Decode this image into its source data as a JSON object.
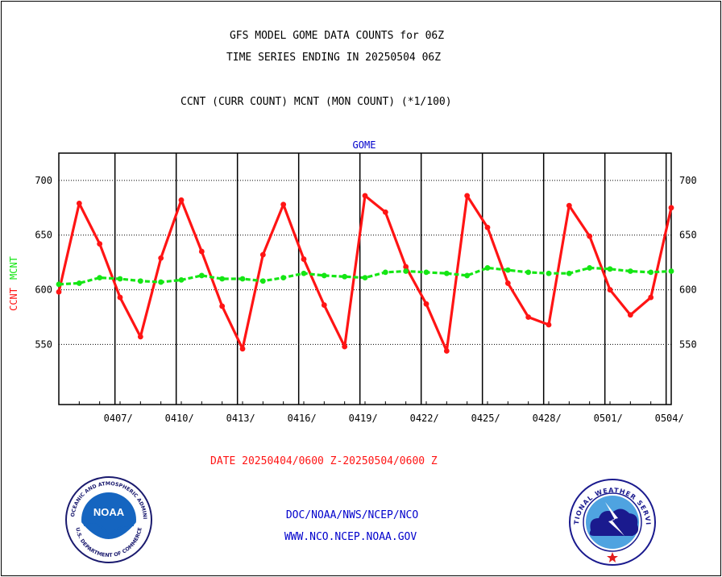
{
  "header": {
    "title_line1": "GFS MODEL GOME DATA COUNTS for 06Z",
    "title_line2": "TIME SERIES ENDING IN 20250504 06Z",
    "subtitle": "CCNT (CURR COUNT) MCNT (MON COUNT) (*1/100)"
  },
  "chart_data": {
    "type": "line",
    "panel_label": "GOME",
    "ylabel_left": [
      "CCNT",
      "MCNT"
    ],
    "ylim": [
      495,
      725
    ],
    "yticks": [
      550,
      600,
      650,
      700
    ],
    "x_range": [
      "2025-04-04 06Z",
      "2025-05-04 06Z"
    ],
    "xticks": [
      {
        "date": "2025-04-07",
        "label": "0407/"
      },
      {
        "date": "2025-04-10",
        "label": "0410/"
      },
      {
        "date": "2025-04-13",
        "label": "0413/"
      },
      {
        "date": "2025-04-16",
        "label": "0416/"
      },
      {
        "date": "2025-04-19",
        "label": "0419/"
      },
      {
        "date": "2025-04-22",
        "label": "0422/"
      },
      {
        "date": "2025-04-25",
        "label": "0425/"
      },
      {
        "date": "2025-04-28",
        "label": "0428/"
      },
      {
        "date": "2025-05-01",
        "label": "0501/"
      },
      {
        "date": "2025-05-04",
        "label": "0504/"
      }
    ],
    "grid": {
      "horizontal": "dotted",
      "vertical": "solid"
    },
    "x": [
      "2025-04-04 06Z",
      "2025-04-05 06Z",
      "2025-04-06 06Z",
      "2025-04-07 06Z",
      "2025-04-08 06Z",
      "2025-04-09 06Z",
      "2025-04-10 06Z",
      "2025-04-11 06Z",
      "2025-04-12 06Z",
      "2025-04-13 06Z",
      "2025-04-14 06Z",
      "2025-04-15 06Z",
      "2025-04-16 06Z",
      "2025-04-17 06Z",
      "2025-04-18 06Z",
      "2025-04-19 06Z",
      "2025-04-20 06Z",
      "2025-04-21 06Z",
      "2025-04-22 06Z",
      "2025-04-23 06Z",
      "2025-04-24 06Z",
      "2025-04-25 06Z",
      "2025-04-26 06Z",
      "2025-04-27 06Z",
      "2025-04-28 06Z",
      "2025-04-29 06Z",
      "2025-04-30 06Z",
      "2025-05-01 06Z",
      "2025-05-02 06Z",
      "2025-05-03 06Z",
      "2025-05-04 06Z"
    ],
    "series": [
      {
        "name": "CCNT",
        "color": "#ff1414",
        "style": "solid",
        "values": [
          598,
          679,
          642,
          593,
          557,
          629,
          682,
          635,
          585,
          546,
          632,
          678,
          628,
          586,
          548,
          686,
          671,
          621,
          587,
          544,
          686,
          657,
          606,
          575,
          568,
          677,
          649,
          600,
          577,
          593,
          675
        ]
      },
      {
        "name": "MCNT",
        "color": "#14e614",
        "style": "dashed",
        "values": [
          605,
          606,
          611,
          610,
          608,
          607,
          609,
          613,
          610,
          610,
          608,
          611,
          615,
          613,
          612,
          611,
          616,
          617,
          616,
          615,
          613,
          620,
          618,
          616,
          615,
          615,
          620,
          619,
          617,
          616,
          617
        ]
      }
    ]
  },
  "footer": {
    "date_range": "DATE 20250404/0600 Z-20250504/0600 Z",
    "credit_line": "DOC/NOAA/NWS/NCEP/NCO",
    "website": "WWW.NCO.NCEP.NOAA.GOV"
  },
  "logos": {
    "noaa": {
      "center_text": "NOAA",
      "ring_text": "NATIONAL OCEANIC AND ATMOSPHERIC ADMINISTRATION",
      "bottom_text": "U.S. DEPARTMENT OF COMMERCE",
      "icon": "noaa-seal-icon"
    },
    "nws": {
      "ring_text": "NATIONAL WEATHER SERVICE",
      "icon": "nws-seal-icon"
    }
  },
  "colors": {
    "ccnt": "#ff1414",
    "mcnt": "#14e614",
    "title": "#000000",
    "panel_label": "#0000cc",
    "date_range": "#ff1414",
    "footer_links": "#0000cc"
  }
}
